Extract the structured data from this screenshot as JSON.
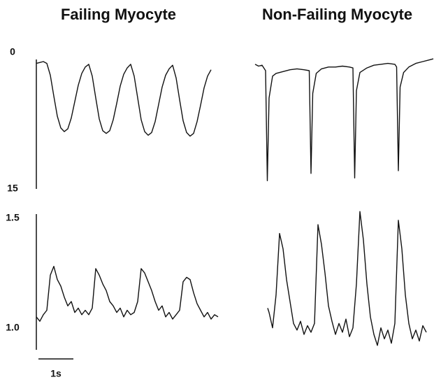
{
  "chart_data": [
    {
      "type": "line",
      "title": "Failing Myocyte",
      "color": "#111111",
      "xlim": [
        0,
        5.1
      ],
      "ylim": [
        15,
        0
      ],
      "yticks": [
        0,
        15
      ],
      "x": [
        0,
        0.1,
        0.2,
        0.3,
        0.4,
        0.5,
        0.6,
        0.7,
        0.8,
        0.9,
        1.0,
        1.1,
        1.2,
        1.3,
        1.4,
        1.5,
        1.6,
        1.7,
        1.8,
        1.9,
        2.0,
        2.1,
        2.2,
        2.3,
        2.4,
        2.5,
        2.6,
        2.7,
        2.8,
        2.9,
        3.0,
        3.1,
        3.2,
        3.3,
        3.4,
        3.5,
        3.6,
        3.7,
        3.8,
        3.9,
        4.0,
        4.1,
        4.2,
        4.3,
        4.4,
        4.5,
        4.6,
        4.7,
        4.8,
        4.9,
        5.0
      ],
      "values": [
        1.2,
        1.1,
        1.0,
        1.2,
        2.5,
        4.8,
        7.0,
        8.3,
        8.7,
        8.4,
        7.2,
        5.4,
        3.6,
        2.3,
        1.6,
        1.3,
        2.6,
        5.0,
        7.3,
        8.6,
        8.9,
        8.6,
        7.4,
        5.6,
        3.7,
        2.4,
        1.7,
        1.3,
        2.6,
        5.0,
        7.4,
        8.7,
        9.1,
        8.8,
        7.6,
        5.7,
        3.8,
        2.5,
        1.8,
        1.4,
        2.8,
        5.2,
        7.5,
        8.8,
        9.2,
        8.9,
        7.6,
        5.8,
        3.9,
        2.6,
        1.9
      ]
    },
    {
      "type": "line",
      "title": "Non-Failing Myocyte",
      "color": "#111111",
      "xlim": [
        0,
        5.1
      ],
      "ylim": [
        15,
        0
      ],
      "x": [
        0,
        0.1,
        0.2,
        0.3,
        0.35,
        0.4,
        0.5,
        0.6,
        0.8,
        1.0,
        1.2,
        1.4,
        1.55,
        1.6,
        1.65,
        1.75,
        1.9,
        2.1,
        2.3,
        2.5,
        2.7,
        2.8,
        2.85,
        2.9,
        3.0,
        3.2,
        3.4,
        3.6,
        3.8,
        4.0,
        4.05,
        4.1,
        4.15,
        4.25,
        4.4,
        4.6,
        4.8,
        5.0,
        5.1
      ],
      "values": [
        1.3,
        1.5,
        1.4,
        2.0,
        14.1,
        5.0,
        2.6,
        2.3,
        2.1,
        1.9,
        1.8,
        1.9,
        2.0,
        13.3,
        4.5,
        2.3,
        1.8,
        1.6,
        1.6,
        1.5,
        1.6,
        1.7,
        13.8,
        4.2,
        2.2,
        1.7,
        1.4,
        1.3,
        1.2,
        1.3,
        1.6,
        13.0,
        3.8,
        2.2,
        1.6,
        1.2,
        1.0,
        0.8,
        0.7
      ]
    },
    {
      "type": "line",
      "color": "#111111",
      "xlim": [
        0,
        5.1
      ],
      "ylim": [
        0.9,
        1.55
      ],
      "yticks": [
        1.5,
        {
          "value": 1.0,
          "label": "1.0"
        }
      ],
      "scale_bar": {
        "length": 1,
        "label": "1s"
      },
      "x": [
        0,
        0.1,
        0.2,
        0.3,
        0.4,
        0.5,
        0.6,
        0.7,
        0.8,
        0.9,
        1.0,
        1.1,
        1.2,
        1.3,
        1.4,
        1.5,
        1.6,
        1.7,
        1.8,
        1.9,
        2.0,
        2.1,
        2.2,
        2.3,
        2.4,
        2.5,
        2.6,
        2.7,
        2.8,
        2.9,
        3.0,
        3.1,
        3.2,
        3.3,
        3.4,
        3.5,
        3.6,
        3.7,
        3.8,
        3.9,
        4.0,
        4.1,
        4.2,
        4.3,
        4.4,
        4.5,
        4.6,
        4.7,
        4.8,
        4.9,
        5.0,
        5.1,
        5.2
      ],
      "values": [
        1.05,
        1.03,
        1.06,
        1.08,
        1.24,
        1.28,
        1.22,
        1.19,
        1.14,
        1.1,
        1.12,
        1.07,
        1.09,
        1.06,
        1.08,
        1.06,
        1.09,
        1.27,
        1.24,
        1.2,
        1.17,
        1.12,
        1.1,
        1.07,
        1.09,
        1.05,
        1.08,
        1.06,
        1.07,
        1.12,
        1.27,
        1.25,
        1.21,
        1.17,
        1.12,
        1.08,
        1.1,
        1.05,
        1.07,
        1.04,
        1.06,
        1.08,
        1.21,
        1.23,
        1.22,
        1.16,
        1.11,
        1.08,
        1.05,
        1.07,
        1.04,
        1.06,
        1.05
      ]
    },
    {
      "type": "line",
      "color": "#111111",
      "xlim": [
        0,
        5.1
      ],
      "ylim": [
        0.9,
        1.55
      ],
      "x": [
        0.36,
        0.4,
        0.5,
        0.6,
        0.7,
        0.8,
        0.9,
        1.0,
        1.1,
        1.2,
        1.3,
        1.4,
        1.5,
        1.6,
        1.7,
        1.8,
        1.9,
        2.0,
        2.1,
        2.2,
        2.3,
        2.4,
        2.5,
        2.6,
        2.7,
        2.8,
        2.9,
        3.0,
        3.1,
        3.2,
        3.3,
        3.4,
        3.5,
        3.6,
        3.7,
        3.8,
        3.9,
        4.0,
        4.1,
        4.2,
        4.3,
        4.4,
        4.5,
        4.6,
        4.7,
        4.8,
        4.9
      ],
      "values": [
        1.09,
        1.07,
        1.0,
        1.15,
        1.43,
        1.36,
        1.22,
        1.12,
        1.02,
        0.99,
        1.03,
        0.97,
        1.01,
        0.98,
        1.02,
        1.47,
        1.38,
        1.25,
        1.1,
        1.03,
        0.97,
        1.02,
        0.98,
        1.04,
        0.96,
        1.0,
        1.2,
        1.53,
        1.4,
        1.2,
        1.05,
        0.97,
        0.92,
        1.0,
        0.95,
        0.99,
        0.93,
        1.02,
        1.49,
        1.36,
        1.15,
        1.02,
        0.95,
        0.99,
        0.94,
        1.01,
        0.98
      ]
    }
  ]
}
